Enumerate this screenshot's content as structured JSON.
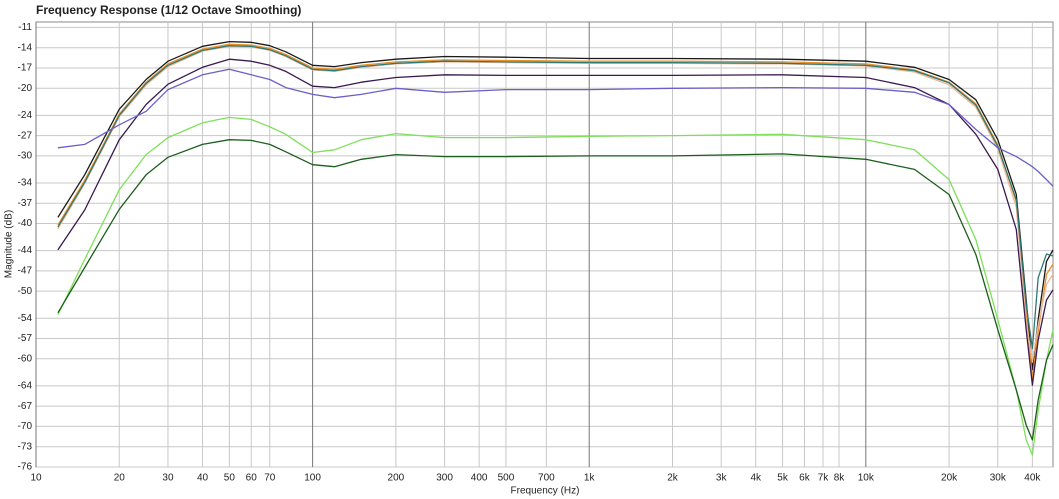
{
  "chart_data": {
    "type": "line",
    "title": "Frequency Response (1/12 Octave Smoothing)",
    "xlabel": "Frequency (Hz)",
    "ylabel": "Magnitude (dB)",
    "xscale": "log",
    "grid": true,
    "xlim": [
      10,
      47500
    ],
    "ylim": [
      -76,
      -10.2
    ],
    "xticks": [
      10,
      20,
      30,
      40,
      50,
      60,
      70,
      100,
      200,
      300,
      400,
      500,
      700,
      {
        "value": 1000,
        "label": "1k"
      },
      {
        "value": 2000,
        "label": "2k"
      },
      {
        "value": 3000,
        "label": "3k"
      },
      {
        "value": 4000,
        "label": "4k"
      },
      {
        "value": 5000,
        "label": "5k"
      },
      {
        "value": 6000,
        "label": "6k"
      },
      {
        "value": 7000,
        "label": "7k"
      },
      {
        "value": 8000,
        "label": "8k"
      },
      {
        "value": 10000,
        "label": "10k"
      },
      {
        "value": 20000,
        "label": "20k"
      },
      {
        "value": 30000,
        "label": "30k"
      },
      {
        "value": 40000,
        "label": "40k"
      }
    ],
    "yticks": [
      -11,
      -14,
      -17,
      -20,
      -24,
      -27,
      -30,
      -34,
      -37,
      -40,
      -44,
      -47,
      -50,
      -54,
      -57,
      -60,
      -64,
      -67,
      -70,
      -73,
      -76
    ],
    "x": [
      12,
      15,
      20,
      25,
      30,
      40,
      50,
      60,
      70,
      80,
      100,
      120,
      150,
      200,
      300,
      500,
      1000,
      2000,
      5000,
      10000,
      15000,
      20000,
      25000,
      30000,
      35000,
      38000,
      40000,
      42000,
      45000,
      47500
    ],
    "series": [
      {
        "color": "#1a1a1a",
        "values": [
          -39.1,
          -32.8,
          -23.1,
          -18.7,
          -16,
          -13.8,
          -13.1,
          -13.2,
          -13.7,
          -14.6,
          -16.6,
          -16.8,
          -16.2,
          -15.7,
          -15.3,
          -15.4,
          -15.6,
          -15.6,
          -15.7,
          -16,
          -16.9,
          -18.7,
          -21.7,
          -27.6,
          -35.7,
          -51.3,
          -61.6,
          -54.2,
          -45.6,
          -43.9
        ]
      },
      {
        "color": "#e8902a",
        "values": [
          -40.2,
          -33.6,
          -23.8,
          -19.1,
          -16.4,
          -14.2,
          -13.5,
          -13.6,
          -14.1,
          -15,
          -17,
          -17.2,
          -16.6,
          -16.1,
          -15.8,
          -15.9,
          -16,
          -16,
          -16.1,
          -16.4,
          -17.3,
          -19.1,
          -22.3,
          -28.4,
          -36.8,
          -53,
          -63,
          -56,
          -47.5,
          -46
        ]
      },
      {
        "color": "#f0b898",
        "values": [
          -40.8,
          -34.1,
          -24.2,
          -19.5,
          -16.8,
          -14.5,
          -13.8,
          -13.9,
          -14.4,
          -15.3,
          -17.3,
          -17.5,
          -16.9,
          -16.4,
          -16.1,
          -16.2,
          -16.3,
          -16.3,
          -16.4,
          -16.7,
          -17.6,
          -19.5,
          -22.8,
          -29,
          -37.6,
          -54.5,
          -60.5,
          -55,
          -49,
          -47.5
        ]
      },
      {
        "color": "#2e7a72",
        "values": [
          -40.5,
          -33.9,
          -24,
          -19.3,
          -16.6,
          -14.4,
          -13.7,
          -13.8,
          -14.3,
          -15.2,
          -17.2,
          -17.4,
          -16.8,
          -16.3,
          -16,
          -16.1,
          -16.2,
          -16.2,
          -16.3,
          -16.6,
          -17.4,
          -19.2,
          -22.5,
          -28.6,
          -36.5,
          -52,
          -58.5,
          -48,
          -44.5,
          -44.8
        ]
      },
      {
        "color": "#3a1850",
        "values": [
          -43.9,
          -38,
          -27.6,
          -22.4,
          -19.4,
          -16.9,
          -15.7,
          -16,
          -16.6,
          -17.5,
          -19.7,
          -19.9,
          -19.1,
          -18.4,
          -18,
          -18.1,
          -18.1,
          -18.1,
          -18,
          -18.4,
          -19.9,
          -22.4,
          -26.8,
          -32,
          -40.9,
          -55.7,
          -63.9,
          -57.2,
          -51.3,
          -49.8
        ]
      },
      {
        "color": "#6a5fc8",
        "values": [
          -28.8,
          -28.3,
          -25.4,
          -23.4,
          -20.2,
          -18,
          -17.2,
          -18,
          -18.7,
          -19.9,
          -20.9,
          -21.4,
          -20.9,
          -20,
          -20.6,
          -20.2,
          -20.2,
          -20,
          -19.9,
          -20,
          -20.6,
          -22.4,
          -26.1,
          -28.8,
          -30.1,
          -31,
          -31.6,
          -32.3,
          -33.5,
          -34.5
        ]
      },
      {
        "color": "#7ee05a",
        "values": [
          -53.5,
          -45.3,
          -35,
          -29.8,
          -27.3,
          -25.1,
          -24.3,
          -24.6,
          -25.7,
          -26.8,
          -29.5,
          -29.1,
          -27.6,
          -26.7,
          -27.3,
          -27.3,
          -27.1,
          -27,
          -26.8,
          -27.6,
          -29.1,
          -33.5,
          -42.4,
          -54.2,
          -64.6,
          -72,
          -74.2,
          -67.6,
          -60.2,
          -55.7
        ]
      },
      {
        "color": "#1c5e1c",
        "values": [
          -53.2,
          -46.5,
          -37.9,
          -32.8,
          -30.2,
          -28.3,
          -27.6,
          -27.7,
          -28.3,
          -29.4,
          -31.3,
          -31.6,
          -30.5,
          -29.8,
          -30.1,
          -30.1,
          -30,
          -30,
          -29.7,
          -30.5,
          -32,
          -35.7,
          -44.6,
          -55.7,
          -64.6,
          -69.8,
          -72,
          -66.1,
          -60.2,
          -57.9
        ]
      }
    ]
  }
}
